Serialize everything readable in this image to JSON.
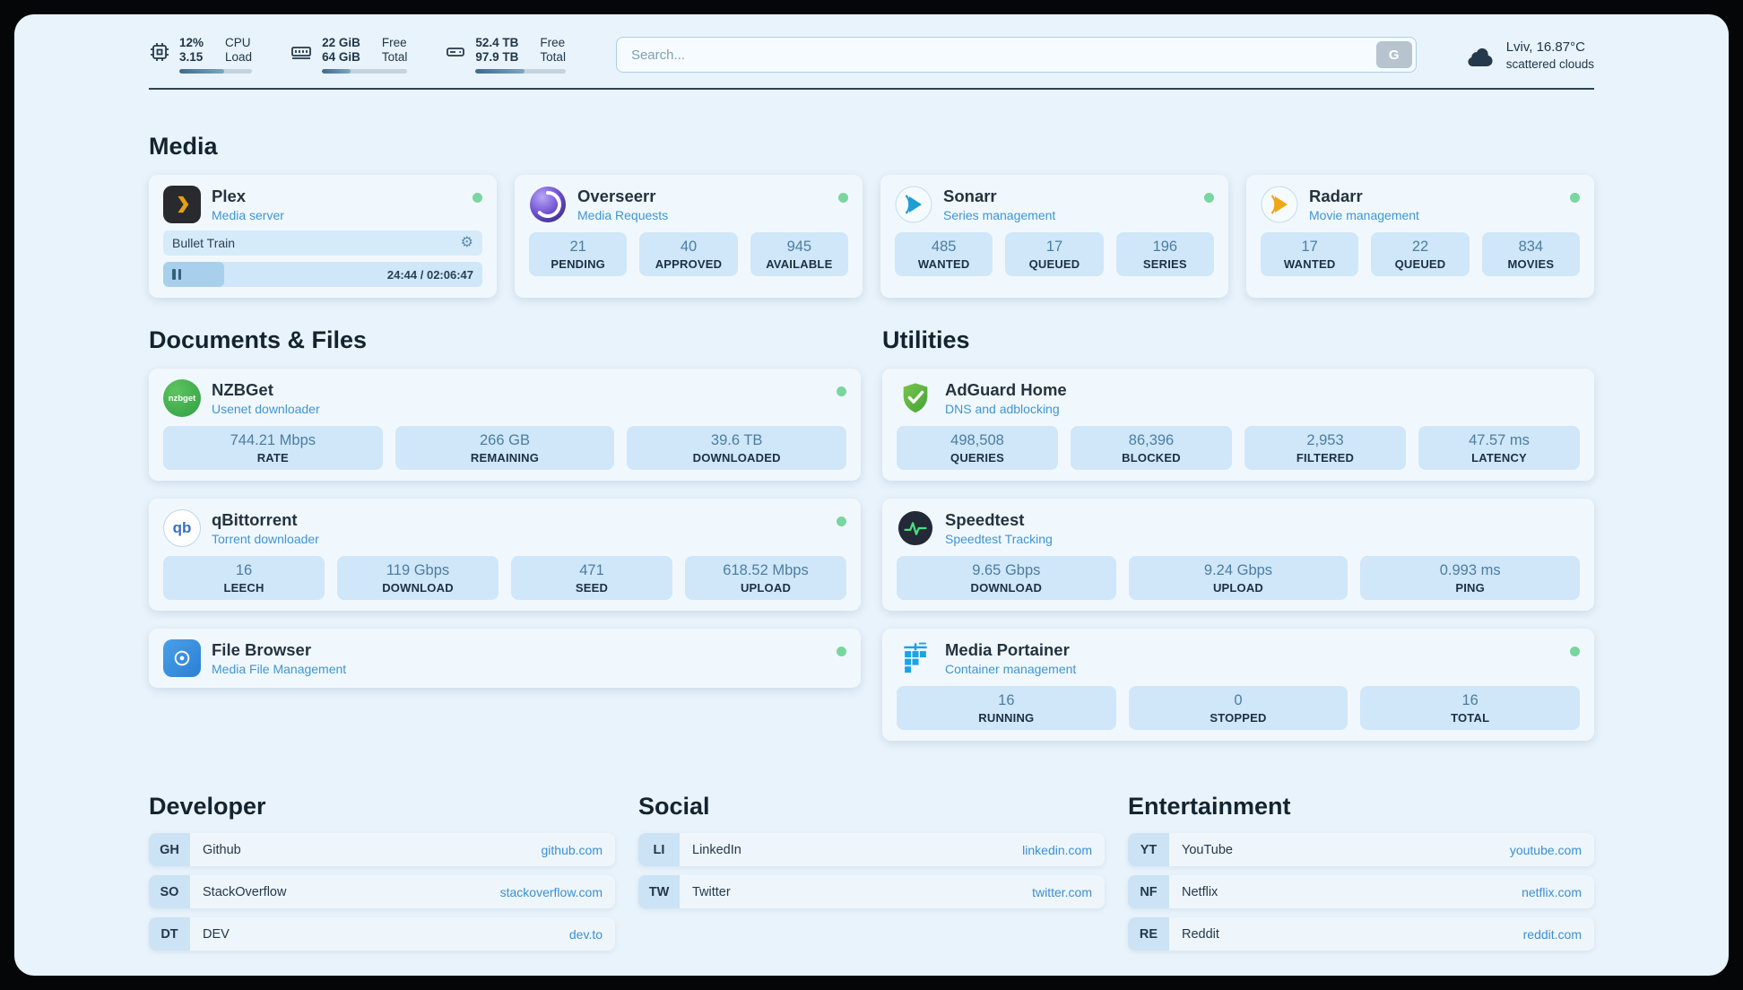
{
  "colors": {
    "page_bg": "#e9f3fb",
    "card_bg": "#f1f8fd",
    "stat_bg": "#cfe7f8",
    "accent_blue": "#3e95d2",
    "status_green": "#79d6a0",
    "heading_text": "#132430"
  },
  "topbar": {
    "cpu": {
      "value_top": "12%",
      "value_bottom": "3.15",
      "label_top": "CPU",
      "label_bottom": "Load",
      "progress_percent": 62
    },
    "memory": {
      "value_top": "22 GiB",
      "value_bottom": "64 GiB",
      "label_top": "Free",
      "label_bottom": "Total",
      "progress_percent": 34
    },
    "storage": {
      "value_top": "52.4 TB",
      "value_bottom": "97.9 TB",
      "label_top": "Free",
      "label_bottom": "Total",
      "progress_percent": 54
    },
    "search": {
      "placeholder": "Search...",
      "button_label": "G"
    },
    "weather": {
      "location": "Lviv, 16.87°C",
      "condition": "scattered clouds"
    }
  },
  "media": {
    "heading": "Media",
    "plex": {
      "name": "Plex",
      "subtitle": "Media server",
      "now_playing": "Bullet Train",
      "time": "24:44 / 02:06:47",
      "progress_percent": 19
    },
    "overseerr": {
      "name": "Overseerr",
      "subtitle": "Media Requests",
      "stats": [
        {
          "value": "21",
          "label": "PENDING"
        },
        {
          "value": "40",
          "label": "APPROVED"
        },
        {
          "value": "945",
          "label": "AVAILABLE"
        }
      ]
    },
    "sonarr": {
      "name": "Sonarr",
      "subtitle": "Series management",
      "stats": [
        {
          "value": "485",
          "label": "WANTED"
        },
        {
          "value": "17",
          "label": "QUEUED"
        },
        {
          "value": "196",
          "label": "SERIES"
        }
      ]
    },
    "radarr": {
      "name": "Radarr",
      "subtitle": "Movie management",
      "stats": [
        {
          "value": "17",
          "label": "WANTED"
        },
        {
          "value": "22",
          "label": "QUEUED"
        },
        {
          "value": "834",
          "label": "MOVIES"
        }
      ]
    }
  },
  "documents": {
    "heading": "Documents & Files",
    "nzbget": {
      "name": "NZBGet",
      "subtitle": "Usenet downloader",
      "icon_label": "nzbget",
      "stats": [
        {
          "value": "744.21 Mbps",
          "label": "RATE"
        },
        {
          "value": "266 GB",
          "label": "REMAINING"
        },
        {
          "value": "39.6 TB",
          "label": "DOWNLOADED"
        }
      ]
    },
    "qbittorrent": {
      "name": "qBittorrent",
      "subtitle": "Torrent downloader",
      "icon_label": "qb",
      "stats": [
        {
          "value": "16",
          "label": "LEECH"
        },
        {
          "value": "119 Gbps",
          "label": "DOWNLOAD"
        },
        {
          "value": "471",
          "label": "SEED"
        },
        {
          "value": "618.52 Mbps",
          "label": "UPLOAD"
        }
      ]
    },
    "filebrowser": {
      "name": "File Browser",
      "subtitle": "Media File Management"
    }
  },
  "utilities": {
    "heading": "Utilities",
    "adguard": {
      "name": "AdGuard Home",
      "subtitle": "DNS and adblocking",
      "stats": [
        {
          "value": "498,508",
          "label": "QUERIES"
        },
        {
          "value": "86,396",
          "label": "BLOCKED"
        },
        {
          "value": "2,953",
          "label": "FILTERED"
        },
        {
          "value": "47.57 ms",
          "label": "LATENCY"
        }
      ]
    },
    "speedtest": {
      "name": "Speedtest",
      "subtitle": "Speedtest Tracking",
      "stats": [
        {
          "value": "9.65 Gbps",
          "label": "DOWNLOAD"
        },
        {
          "value": "9.24 Gbps",
          "label": "UPLOAD"
        },
        {
          "value": "0.993 ms",
          "label": "PING"
        }
      ]
    },
    "portainer": {
      "name": "Media Portainer",
      "subtitle": "Container management",
      "stats": [
        {
          "value": "16",
          "label": "RUNNING"
        },
        {
          "value": "0",
          "label": "STOPPED"
        },
        {
          "value": "16",
          "label": "TOTAL"
        }
      ]
    }
  },
  "bookmarks": {
    "developer": {
      "heading": "Developer",
      "items": [
        {
          "abbr": "GH",
          "name": "Github",
          "url": "github.com"
        },
        {
          "abbr": "SO",
          "name": "StackOverflow",
          "url": "stackoverflow.com"
        },
        {
          "abbr": "DT",
          "name": "DEV",
          "url": "dev.to"
        }
      ]
    },
    "social": {
      "heading": "Social",
      "items": [
        {
          "abbr": "LI",
          "name": "LinkedIn",
          "url": "linkedin.com"
        },
        {
          "abbr": "TW",
          "name": "Twitter",
          "url": "twitter.com"
        }
      ]
    },
    "entertainment": {
      "heading": "Entertainment",
      "items": [
        {
          "abbr": "YT",
          "name": "YouTube",
          "url": "youtube.com"
        },
        {
          "abbr": "NF",
          "name": "Netflix",
          "url": "netflix.com"
        },
        {
          "abbr": "RE",
          "name": "Reddit",
          "url": "reddit.com"
        }
      ]
    }
  }
}
